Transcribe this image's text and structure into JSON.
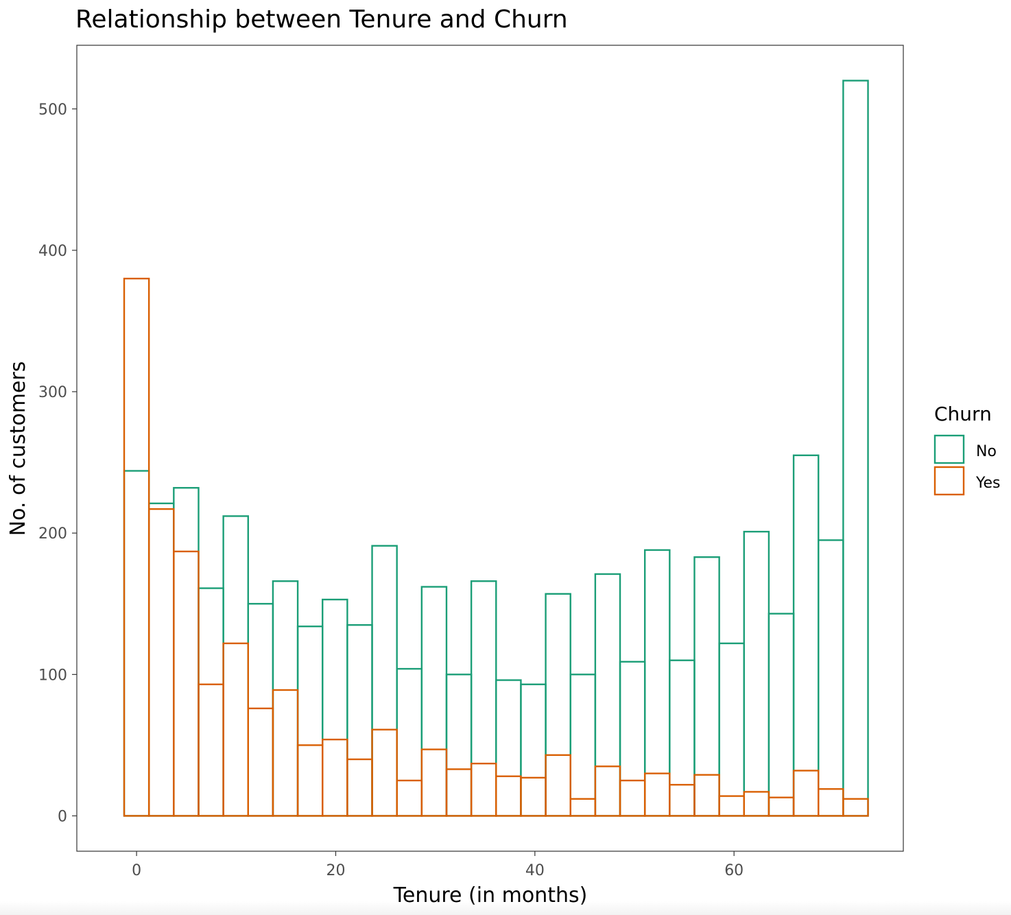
{
  "chart_data": {
    "type": "bar",
    "title": "Relationship between Tenure and Churn",
    "xlabel": "Tenure (in months)",
    "ylabel": "No. of customers",
    "xlim": [
      -6,
      77
    ],
    "ylim": [
      -25,
      545
    ],
    "x_ticks": [
      0,
      20,
      40,
      60
    ],
    "y_ticks": [
      0,
      100,
      200,
      300,
      400,
      500
    ],
    "grid": false,
    "legend_position": "right",
    "legend_title": "Churn",
    "bin_width": 2.49,
    "bin_centers": [
      0,
      2.49,
      4.98,
      7.47,
      9.96,
      12.45,
      14.94,
      17.43,
      19.92,
      22.41,
      24.9,
      27.39,
      29.88,
      32.37,
      34.86,
      37.35,
      39.84,
      42.33,
      44.82,
      47.31,
      49.8,
      52.29,
      54.78,
      57.27,
      59.76,
      62.25,
      64.74,
      67.23,
      69.72,
      72.21
    ],
    "series": [
      {
        "name": "No",
        "color": "#1b9e77",
        "values": [
          244,
          221,
          232,
          161,
          212,
          150,
          166,
          134,
          153,
          135,
          191,
          104,
          162,
          100,
          166,
          96,
          93,
          157,
          100,
          171,
          109,
          188,
          110,
          183,
          122,
          201,
          143,
          255,
          195,
          520
        ]
      },
      {
        "name": "Yes",
        "color": "#d95f02",
        "values": [
          380,
          217,
          187,
          93,
          122,
          76,
          89,
          50,
          54,
          40,
          61,
          25,
          47,
          33,
          37,
          28,
          27,
          43,
          12,
          35,
          25,
          30,
          22,
          29,
          14,
          17,
          13,
          32,
          19,
          12
        ]
      }
    ]
  }
}
